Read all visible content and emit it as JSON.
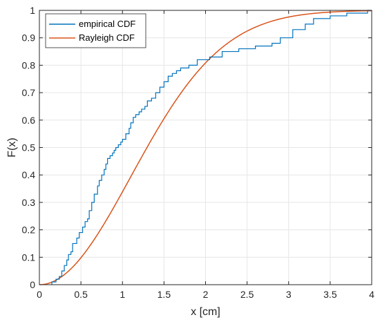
{
  "chart_data": {
    "type": "line",
    "xlabel": "x [cm]",
    "ylabel": "F(x)",
    "xlim": [
      0,
      4
    ],
    "ylim": [
      0,
      1
    ],
    "xticks": [
      "0",
      "0.5",
      "1",
      "1.5",
      "2",
      "2.5",
      "3",
      "3.5",
      "4"
    ],
    "yticks": [
      "0",
      "0.1",
      "0.2",
      "0.3",
      "0.4",
      "0.5",
      "0.6",
      "0.7",
      "0.8",
      "0.9",
      "1"
    ],
    "grid": true,
    "legend_position": "top-left",
    "series": [
      {
        "name": "empirical CDF",
        "color": "#0072BD",
        "style": "step",
        "x": [
          0.15,
          0.2,
          0.24,
          0.27,
          0.3,
          0.33,
          0.35,
          0.38,
          0.4,
          0.45,
          0.48,
          0.52,
          0.55,
          0.58,
          0.6,
          0.63,
          0.66,
          0.7,
          0.72,
          0.75,
          0.78,
          0.8,
          0.82,
          0.85,
          0.88,
          0.9,
          0.92,
          0.95,
          0.98,
          1.0,
          1.04,
          1.08,
          1.1,
          1.13,
          1.16,
          1.2,
          1.23,
          1.27,
          1.3,
          1.35,
          1.4,
          1.45,
          1.5,
          1.55,
          1.6,
          1.65,
          1.7,
          1.8,
          1.9,
          2.05,
          2.2,
          2.4,
          2.6,
          2.8,
          2.9,
          3.05,
          3.2,
          3.3,
          3.5,
          3.7,
          3.95,
          4.0
        ],
        "y": [
          0.01,
          0.02,
          0.03,
          0.05,
          0.07,
          0.09,
          0.11,
          0.12,
          0.15,
          0.17,
          0.19,
          0.21,
          0.23,
          0.24,
          0.27,
          0.3,
          0.33,
          0.36,
          0.38,
          0.4,
          0.42,
          0.44,
          0.46,
          0.47,
          0.48,
          0.49,
          0.5,
          0.51,
          0.52,
          0.53,
          0.55,
          0.57,
          0.59,
          0.61,
          0.62,
          0.63,
          0.64,
          0.65,
          0.67,
          0.68,
          0.7,
          0.72,
          0.74,
          0.76,
          0.77,
          0.78,
          0.79,
          0.8,
          0.82,
          0.83,
          0.85,
          0.86,
          0.87,
          0.88,
          0.9,
          0.93,
          0.95,
          0.97,
          0.98,
          0.99,
          1.0,
          1.0
        ]
      },
      {
        "name": "Rayleigh CDF",
        "color": "#D95319",
        "style": "line",
        "sigma": 1.1
      }
    ]
  }
}
